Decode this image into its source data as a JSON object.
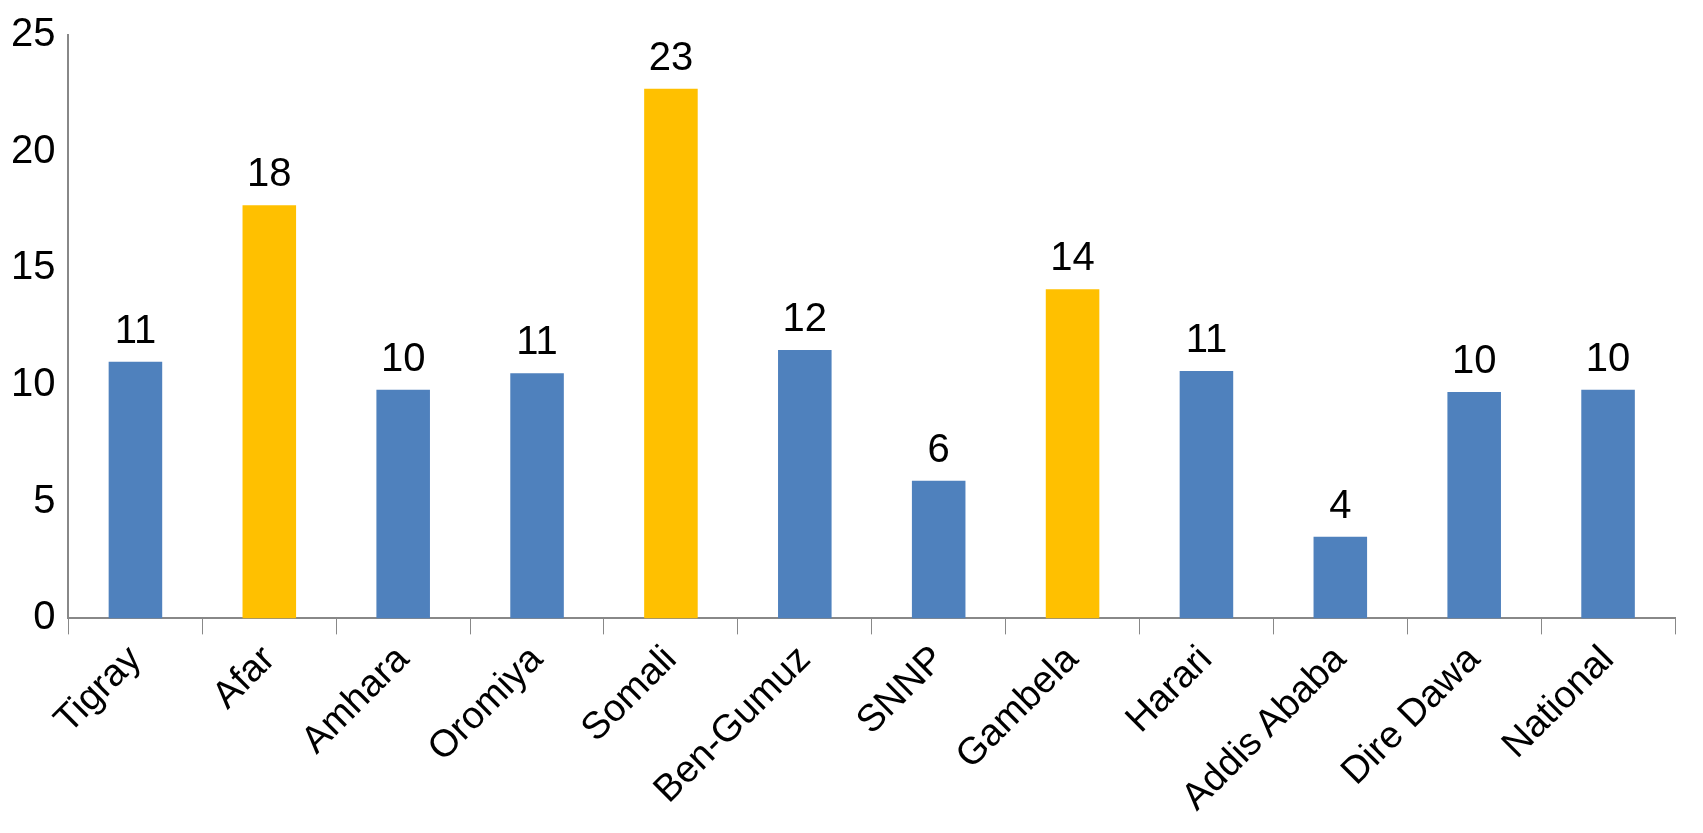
{
  "chart_data": {
    "type": "bar",
    "categories": [
      "Tigray",
      "Afar",
      "Amhara",
      "Oromiya",
      "Somali",
      "Ben-Gumuz",
      "SNNP",
      "Gambela",
      "Harari",
      "Addis Ababa",
      "Dire Dawa",
      "National"
    ],
    "values": [
      11.0,
      17.7,
      9.8,
      10.5,
      22.7,
      11.5,
      5.9,
      14.1,
      10.6,
      3.5,
      9.7,
      9.8
    ],
    "colors": [
      "#4f81bd",
      "#ffc000",
      "#4f81bd",
      "#4f81bd",
      "#ffc000",
      "#4f81bd",
      "#4f81bd",
      "#ffc000",
      "#4f81bd",
      "#4f81bd",
      "#4f81bd",
      "#4f81bd"
    ],
    "value_labels": [
      "11",
      "18",
      "10",
      "11",
      "23",
      "12",
      "6",
      "14",
      "11",
      "4",
      "10",
      "10"
    ],
    "ylim": [
      0,
      25
    ],
    "yticks": [
      0,
      5,
      10,
      15,
      20,
      25
    ]
  }
}
